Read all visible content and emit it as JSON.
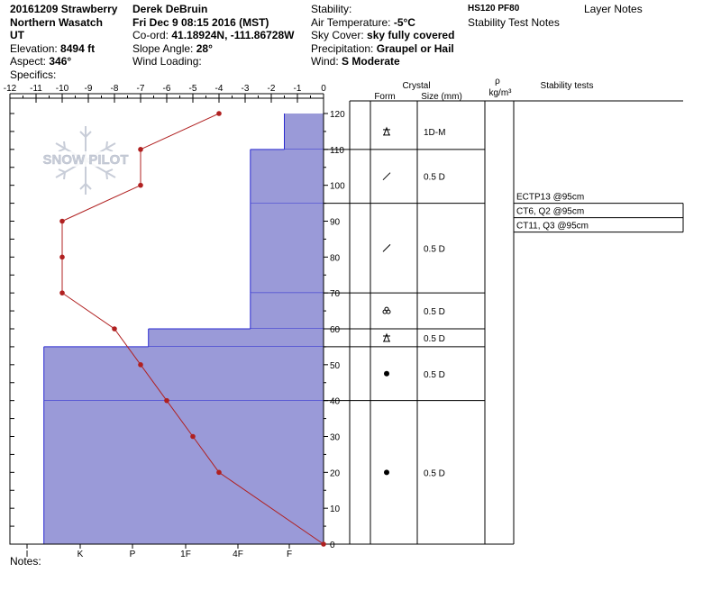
{
  "header": {
    "col1": {
      "title": "20161209 Strawberry",
      "range": "Northern Wasatch",
      "state": "UT",
      "elevation_label": "Elevation:",
      "elevation_value": "8494 ft",
      "aspect_label": "Aspect:",
      "aspect_value": "346°",
      "specifics_label": "Specifics:"
    },
    "col2": {
      "observer": "Derek DeBruin",
      "datetime": "Fri Dec 9 08:15 2016 (MST)",
      "coord_label": "Co-ord:",
      "coord_value": "41.18924N, -111.86728W",
      "slope_label": "Slope Angle:",
      "slope_value": "28°",
      "wind_loading_label": "Wind Loading:"
    },
    "col3": {
      "stability_label": "Stability:",
      "air_temp_label": "Air Temperature:",
      "air_temp_value": "-5°C",
      "sky_label": "Sky Cover:",
      "sky_value": "sky fully covered",
      "precip_label": "Precipitation:",
      "precip_value": "Graupel or Hail",
      "wind_label": "Wind:",
      "wind_value": "S Moderate"
    },
    "col4": {
      "hs_pf": "HS120 PF80",
      "stability_notes": "Stability Test Notes"
    },
    "col5": {
      "layer_notes": "Layer Notes"
    }
  },
  "logo": {
    "text": "SNOW PILOT",
    "color": "#c8cdd8"
  },
  "notes_label": "Notes:",
  "colors": {
    "temp": "#b02020",
    "hardness_fill": "#9a9ad8",
    "hardness_line": "#2a2ad0",
    "grid": "#000000"
  },
  "chart_data": {
    "type": "line",
    "temp_axis": {
      "ticks": [
        "-12",
        "-11",
        "-10",
        "-9",
        "-8",
        "-7",
        "-6",
        "-5",
        "-4",
        "-3",
        "-2",
        "-1",
        "0"
      ],
      "range": [
        -12,
        0
      ]
    },
    "height_axis": {
      "ticks": [
        "0",
        "10",
        "20",
        "30",
        "40",
        "50",
        "60",
        "70",
        "80",
        "90",
        "100",
        "110",
        "120"
      ],
      "range": [
        0,
        120
      ]
    },
    "hardness_axis": {
      "ticks": [
        "I",
        "K",
        "P",
        "1F",
        "4F",
        "F"
      ]
    },
    "temperature_profile": [
      {
        "h": 120,
        "t": -4
      },
      {
        "h": 110,
        "t": -7
      },
      {
        "h": 100,
        "t": -7
      },
      {
        "h": 90,
        "t": -10
      },
      {
        "h": 80,
        "t": -10
      },
      {
        "h": 70,
        "t": -10
      },
      {
        "h": 60,
        "t": -8
      },
      {
        "h": 50,
        "t": -7
      },
      {
        "h": 40,
        "t": -6
      },
      {
        "h": 30,
        "t": -5
      },
      {
        "h": 20,
        "t": -4
      },
      {
        "h": 0,
        "t": 0
      }
    ],
    "hardness_layers": [
      {
        "top": 120,
        "bottom": 110,
        "width": 0.75
      },
      {
        "top": 110,
        "bottom": 95,
        "width": 1.4
      },
      {
        "top": 95,
        "bottom": 70,
        "width": 1.4
      },
      {
        "top": 70,
        "bottom": 60,
        "width": 1.4
      },
      {
        "top": 60,
        "bottom": 55,
        "width": 3.35
      },
      {
        "top": 55,
        "bottom": 40,
        "width": 5.35
      },
      {
        "top": 40,
        "bottom": 0,
        "width": 5.35
      }
    ],
    "crystal_header": {
      "crystal": "Crystal",
      "form": "Form",
      "size": "Size (mm)",
      "rho": "ρ",
      "rho_unit": "kg/m³",
      "stability_tests": "Stability tests"
    },
    "crystal_layers": [
      {
        "top": 120,
        "bottom": 110,
        "form": "graupel-icon",
        "size": "1D-M"
      },
      {
        "top": 110,
        "bottom": 95,
        "form": "facet-icon",
        "size": "0.5 D"
      },
      {
        "top": 95,
        "bottom": 70,
        "form": "facet-icon",
        "size": "0.5 D"
      },
      {
        "top": 70,
        "bottom": 60,
        "form": "rounded-icon",
        "size": "0.5 D"
      },
      {
        "top": 60,
        "bottom": 55,
        "form": "graupel-icon",
        "size": "0.5 D"
      },
      {
        "top": 55,
        "bottom": 40,
        "form": "dot-icon",
        "size": "0.5 D"
      },
      {
        "top": 40,
        "bottom": 0,
        "form": "dot-icon",
        "size": "0.5 D"
      }
    ],
    "stability_tests": [
      "ECTP13 @95cm",
      "CT6, Q2 @95cm",
      "CT11, Q3 @95cm"
    ]
  }
}
